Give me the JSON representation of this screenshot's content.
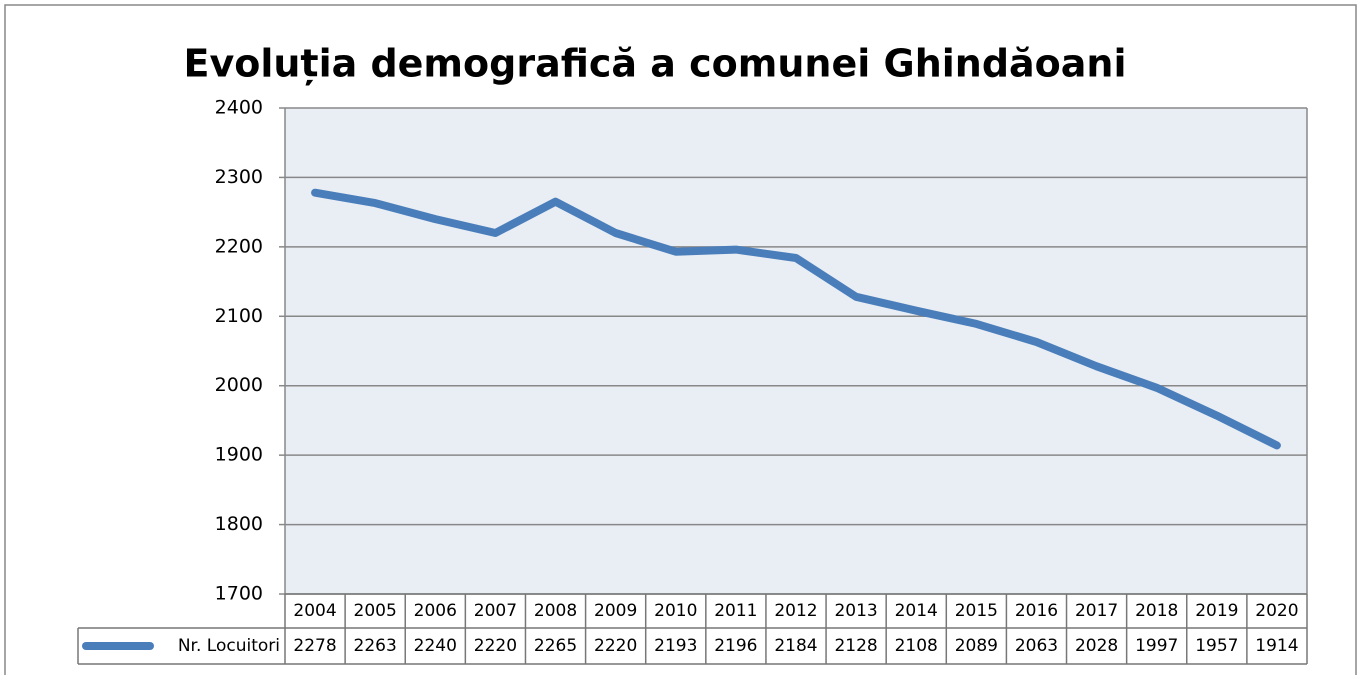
{
  "chart_data": {
    "type": "line",
    "title": "Evoluția demografică a comunei Ghindăoani",
    "categories": [
      "2004",
      "2005",
      "2006",
      "2007",
      "2008",
      "2009",
      "2010",
      "2011",
      "2012",
      "2013",
      "2014",
      "2015",
      "2016",
      "2017",
      "2018",
      "2019",
      "2020"
    ],
    "series": [
      {
        "name": "Nr. Locuitori",
        "color": "#4a7ebb",
        "values": [
          2278,
          2263,
          2240,
          2220,
          2265,
          2220,
          2193,
          2196,
          2184,
          2128,
          2108,
          2089,
          2063,
          2028,
          1997,
          1957,
          1914
        ]
      }
    ],
    "ylim": [
      1700,
      2400
    ],
    "yticks": [
      1700,
      1800,
      1900,
      2000,
      2100,
      2200,
      2300,
      2400
    ],
    "grid": true,
    "data_table": true
  }
}
